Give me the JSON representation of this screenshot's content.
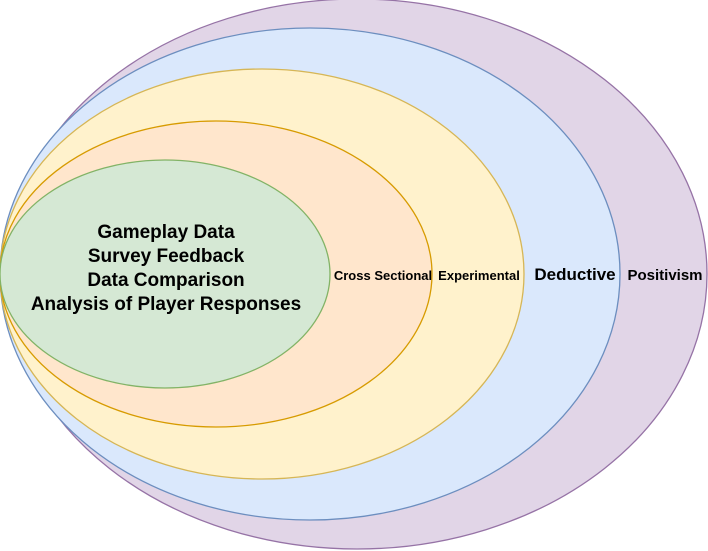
{
  "colors": {
    "positivism_fill": "#e1d5e7",
    "positivism_stroke": "#9673a6",
    "deductive_fill": "#dae8fc",
    "deductive_stroke": "#6c8ebf",
    "experimental_fill": "#fff2cc",
    "experimental_stroke": "#d6b656",
    "cross_sectional_fill": "#ffe6cc",
    "cross_sectional_stroke": "#d79b00",
    "core_fill": "#d5e8d4",
    "core_stroke": "#82b366"
  },
  "layers": {
    "positivism": "Positivism",
    "deductive": "Deductive",
    "experimental": "Experimental",
    "cross_sectional": "Cross Sectional"
  },
  "core": {
    "lines": [
      "Gameplay Data",
      "Survey Feedback",
      "Data Comparison",
      "Analysis of Player Responses"
    ]
  }
}
